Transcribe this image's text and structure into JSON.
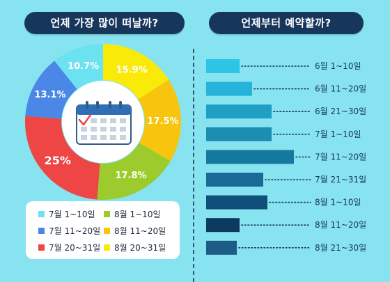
{
  "titles": {
    "left": "언제 가장 많이 떠날까?",
    "right": "언제부터 예약할까?"
  },
  "chart_data": [
    {
      "type": "pie",
      "title": "언제 가장 많이 떠날까?",
      "categories": [
        "7월 1~10일",
        "7월 11~20일",
        "7월 20~31일",
        "8월 1~10일",
        "8월 11~20일",
        "8월 20~31일"
      ],
      "values": [
        10.7,
        13.1,
        25,
        17.8,
        17.5,
        15.9
      ],
      "labels": [
        "10.7%",
        "13.1%",
        "25%",
        "17.8%",
        "17.5%",
        "15.9%"
      ],
      "colors": [
        "#6ce1f0",
        "#4b87e6",
        "#ee4545",
        "#9ccb2e",
        "#f8c50e",
        "#faea08"
      ],
      "legend": "bottom"
    },
    {
      "type": "bar",
      "orientation": "horizontal",
      "title": "언제부터 예약할까?",
      "categories": [
        "6월 1~10일",
        "6월 11~20일",
        "6월 21~30일",
        "7월 1~10일",
        "7월 11~20일",
        "7월 21~31일",
        "8월 1~10일",
        "8월 11~20일",
        "8월 21~30일"
      ],
      "values": [
        48,
        66,
        94,
        94,
        126,
        82,
        88,
        48,
        44
      ],
      "colors": [
        "#2dc4e6",
        "#26b3db",
        "#1f9fc4",
        "#1c8eb4",
        "#15789f",
        "#1a6a98",
        "#0f4f7a",
        "#0c3a60",
        "#1d5c86"
      ],
      "xlim": [
        0,
        130
      ]
    }
  ]
}
